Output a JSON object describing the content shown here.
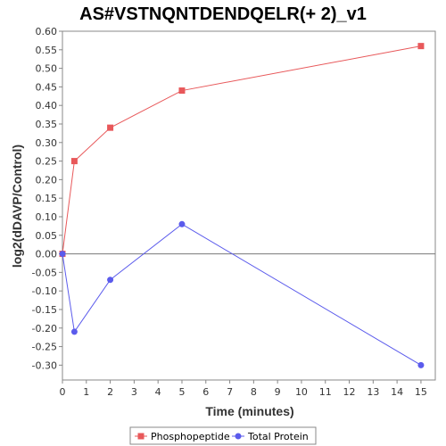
{
  "chart_data": {
    "type": "line",
    "title": "AS#VSTNQNTDENDQELR(+ 2)_v1",
    "xlabel": "Time (minutes)",
    "ylabel": "log2(dDAVP/Control)",
    "xlim": [
      0,
      15.6
    ],
    "ylim": [
      -0.34,
      0.6
    ],
    "xticks": [
      0,
      1,
      2,
      3,
      4,
      5,
      6,
      7,
      8,
      9,
      10,
      11,
      12,
      13,
      14,
      15
    ],
    "yticks": [
      0.6,
      0.55,
      0.5,
      0.45,
      0.4,
      0.35,
      0.3,
      0.25,
      0.2,
      0.15,
      0.1,
      0.05,
      0.0,
      -0.05,
      -0.1,
      -0.15,
      -0.2,
      -0.25,
      -0.3
    ],
    "ytick_labels": [
      "0.60",
      "0.55",
      "0.50",
      "0.45",
      "0.40",
      "0.35",
      "0.30",
      "0.25",
      "0.20",
      "0.15",
      "0.10",
      "0.05",
      "0.00",
      "-0.05",
      "-0.10",
      "-0.15",
      "-0.20",
      "-0.25",
      "-0.30"
    ],
    "x": [
      0,
      0.5,
      2,
      5,
      15
    ],
    "series": [
      {
        "name": "Phosphopeptide",
        "values": [
          0,
          0.25,
          0.34,
          0.44,
          0.56
        ],
        "color": "#e8585a",
        "marker": "square"
      },
      {
        "name": "Total Protein",
        "values": [
          0,
          -0.21,
          -0.07,
          0.08,
          -0.3
        ],
        "color": "#5b5bec",
        "marker": "circle"
      }
    ],
    "zero_line": true,
    "grid": false,
    "legend_position": "bottom-center"
  }
}
